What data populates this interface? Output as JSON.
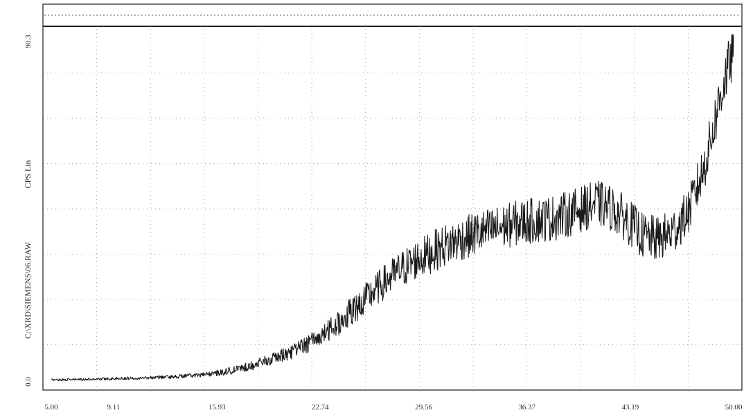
{
  "chart_data": {
    "type": "line",
    "title": "",
    "xlabel": "",
    "ylabel": "CPS Lin",
    "side_label": "C:\\XRD\\SIEMENS\\06.RAW",
    "x_tick_labels": [
      "5.00",
      "9.11",
      "15.93",
      "22.74",
      "29.56",
      "36.37",
      "43.19",
      "50.00"
    ],
    "x_ticks": [
      5.0,
      9.11,
      15.93,
      22.74,
      29.56,
      36.37,
      43.19,
      50.0
    ],
    "y_top_label": "90.3",
    "y_bottom_label": "0.0",
    "xlim": [
      5.0,
      50.0
    ],
    "ylim": [
      0.0,
      90.3
    ],
    "grid": true,
    "series": [
      {
        "x": [
          5.0,
          7.0,
          9.0,
          11.0,
          13.0,
          15.0,
          16.0,
          17.0,
          18.0,
          19.0,
          20.0,
          21.0,
          22.0,
          23.0,
          24.0,
          25.0,
          26.0,
          27.0,
          28.0,
          29.0,
          30.0,
          31.0,
          32.0,
          33.0,
          34.0,
          35.0,
          36.0,
          37.0,
          38.0,
          39.0,
          40.0,
          41.0,
          42.0,
          43.0,
          44.0,
          45.0,
          46.0,
          47.0,
          48.0,
          48.5,
          49.0,
          49.5,
          50.0
        ],
        "y": [
          0.5,
          0.6,
          0.8,
          1.0,
          1.3,
          1.8,
          2.3,
          3.0,
          4.0,
          5.2,
          6.5,
          8.0,
          10.0,
          12.5,
          15.5,
          19.0,
          22.5,
          26.0,
          29.0,
          31.5,
          33.5,
          35.5,
          37.0,
          38.5,
          39.5,
          40.5,
          41.5,
          42.0,
          42.5,
          43.5,
          45.0,
          46.5,
          45.0,
          42.0,
          38.0,
          37.0,
          39.0,
          44.0,
          55.0,
          63.0,
          72.0,
          80.0,
          86.0
        ],
        "noise": [
          0.3,
          0.3,
          0.4,
          0.4,
          0.5,
          0.6,
          0.8,
          1.0,
          1.2,
          1.4,
          1.7,
          2.0,
          2.4,
          2.8,
          3.3,
          3.8,
          4.2,
          4.6,
          5.0,
          5.2,
          5.4,
          5.6,
          5.6,
          5.8,
          5.8,
          5.8,
          6.0,
          6.0,
          6.0,
          6.0,
          6.0,
          6.0,
          6.0,
          6.0,
          6.0,
          6.0,
          6.0,
          6.0,
          6.5,
          6.5,
          7.0,
          7.0,
          7.0
        ]
      }
    ]
  }
}
